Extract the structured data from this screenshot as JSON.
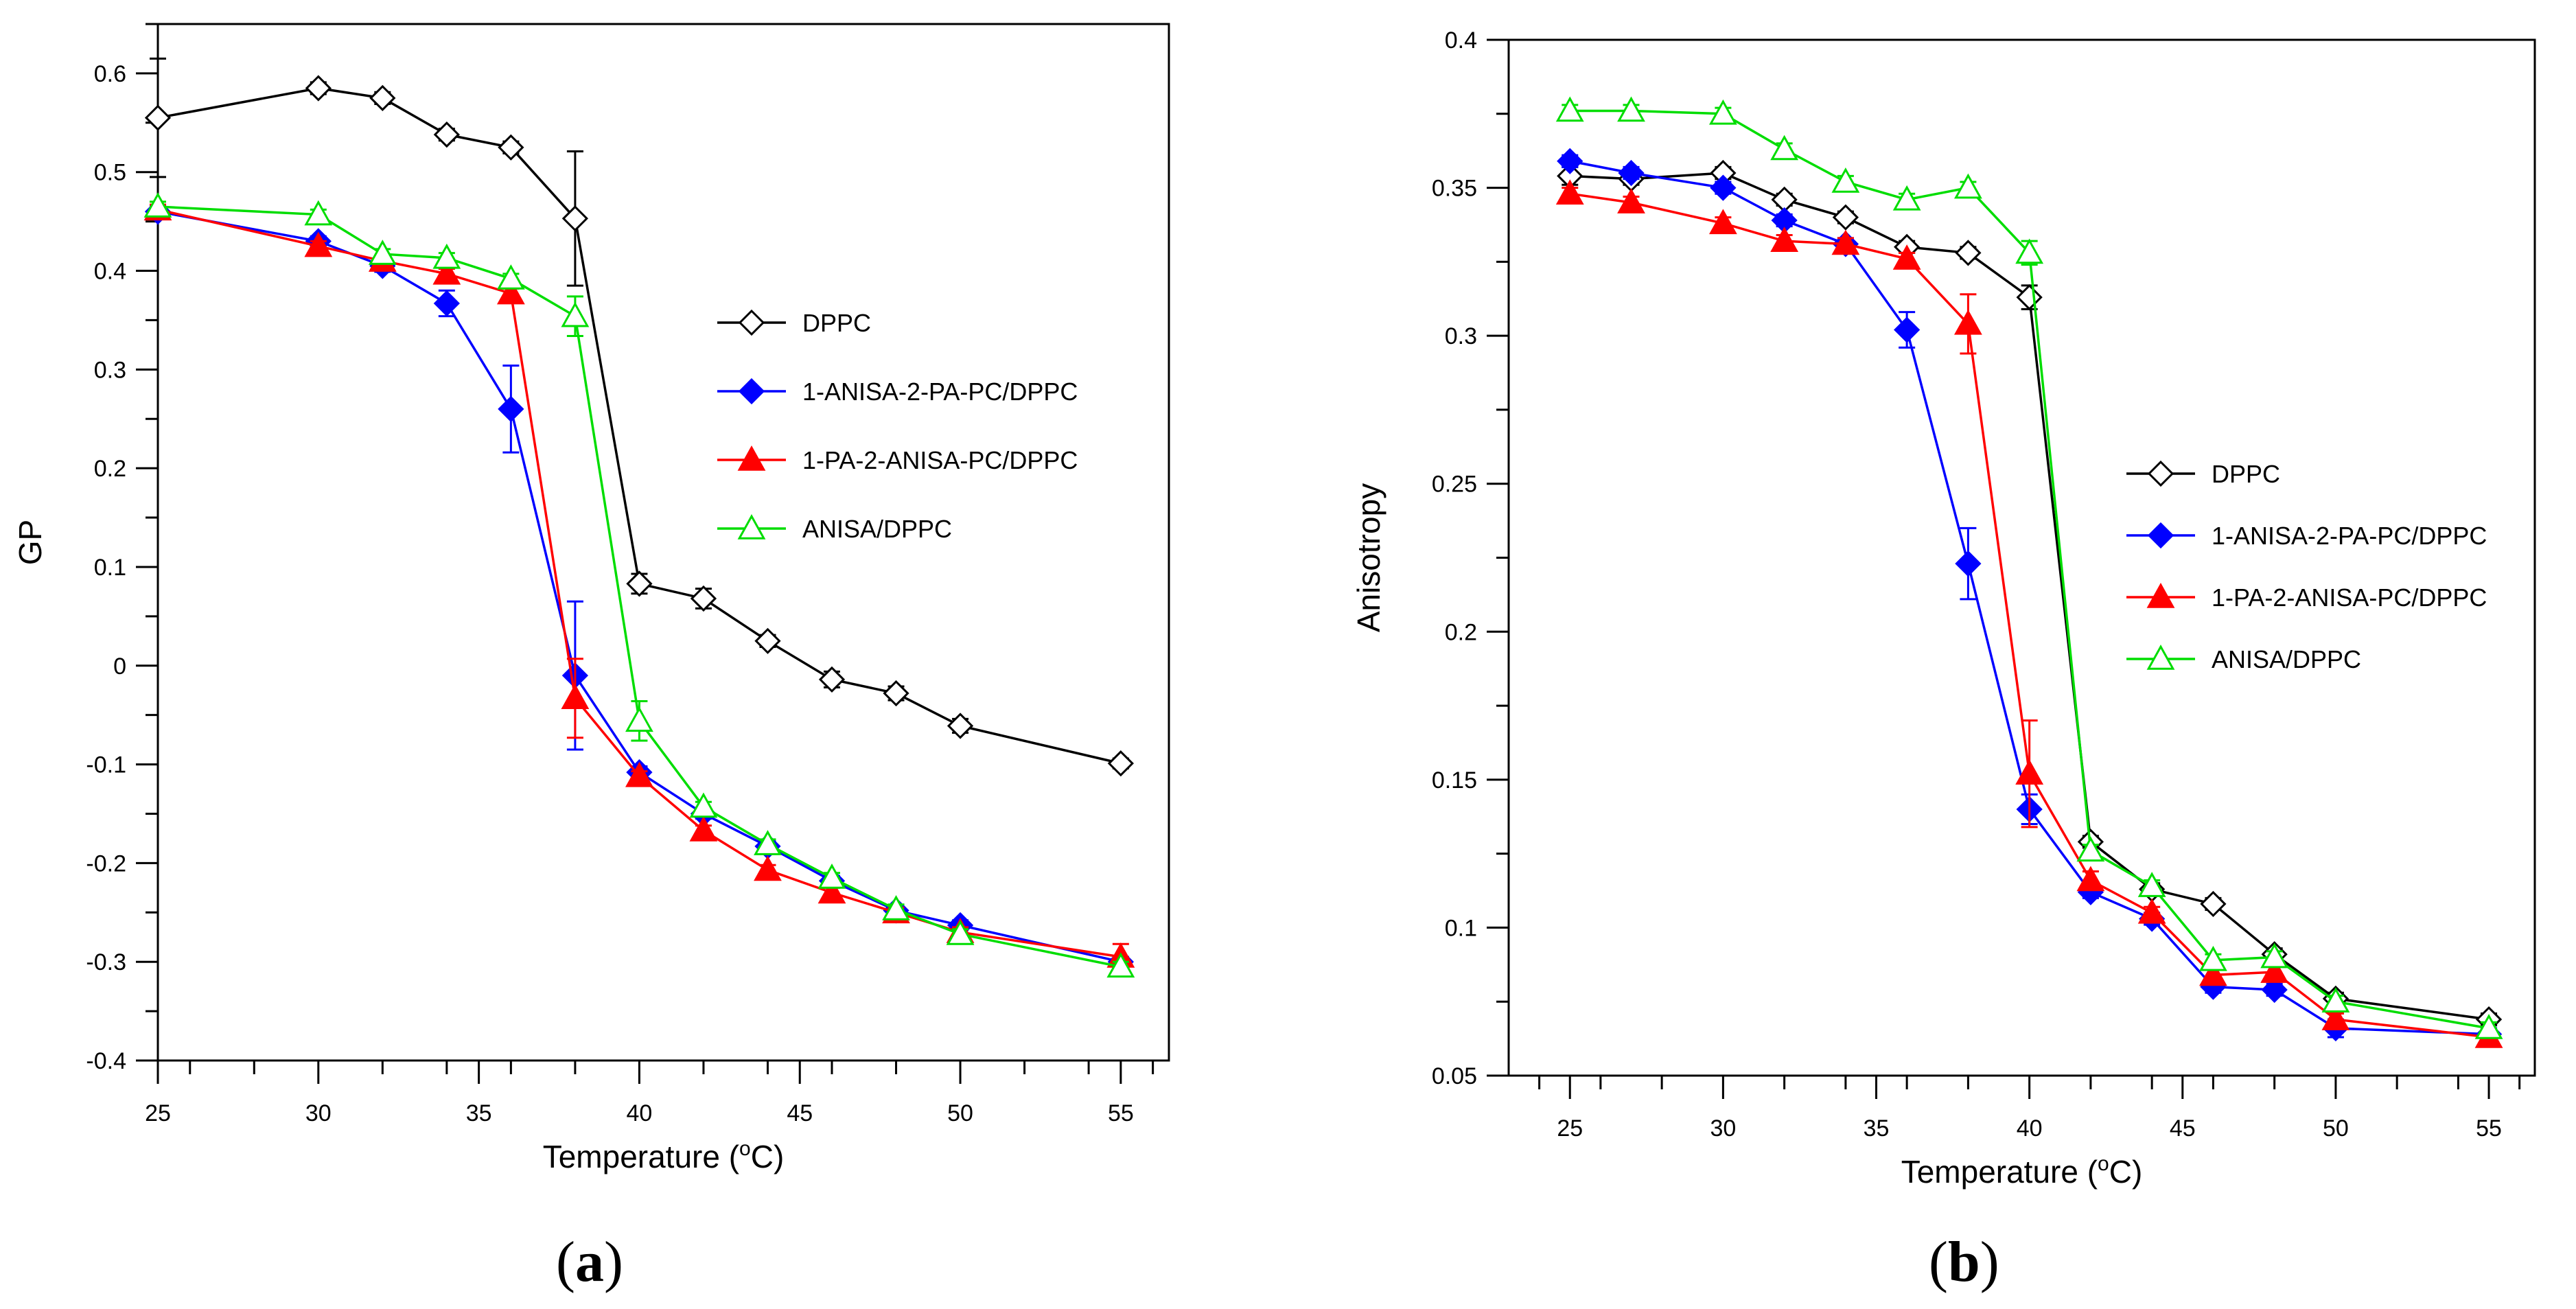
{
  "figure": {
    "panels": [
      {
        "label_open": "(",
        "label_letter": "a",
        "label_close": ")"
      },
      {
        "label_open": "(",
        "label_letter": "b",
        "label_close": ")"
      }
    ]
  },
  "chart_data": [
    {
      "type": "line",
      "xlabel": "Temperature (oC)",
      "xlabel_prefix": "Temperature (",
      "xlabel_sup": "o",
      "xlabel_suffix": "C)",
      "ylabel": "GP",
      "xlim": [
        25,
        56.5
      ],
      "ylim": [
        -0.4,
        0.65
      ],
      "xticks": [
        25,
        30,
        35,
        40,
        45,
        50,
        55
      ],
      "yticks": [
        -0.4,
        -0.3,
        -0.2,
        -0.1,
        0,
        0.1,
        0.2,
        0.3,
        0.4,
        0.5,
        0.6
      ],
      "ytick_labels": [
        "-0.4",
        "-0.3",
        "-0.2",
        "-0.1",
        "0",
        "0.1",
        "0.2",
        "0.3",
        "0.4",
        "0.5",
        "0.6"
      ],
      "grid": false,
      "legend_position": "right",
      "series": [
        {
          "name": "DPPC",
          "color": "#000000",
          "marker": "diamond-open",
          "x": [
            25,
            30,
            32,
            34,
            36,
            38,
            40,
            42,
            44,
            46,
            48,
            50,
            55
          ],
          "y": [
            0.555,
            0.585,
            0.575,
            0.538,
            0.525,
            0.453,
            0.083,
            0.068,
            0.025,
            -0.014,
            -0.028,
            -0.061,
            -0.099
          ],
          "err": [
            0.06,
            0.006,
            0.006,
            0.006,
            0.006,
            0.068,
            0.01,
            0.01,
            0.006,
            0.008,
            0.007,
            0.007,
            0.005
          ]
        },
        {
          "name": "1-ANISA-2-PA-PC/DPPC",
          "color": "#0000ff",
          "marker": "diamond-filled",
          "x": [
            25,
            30,
            32,
            34,
            36,
            38,
            40,
            42,
            44,
            46,
            48,
            50,
            55
          ],
          "y": [
            0.46,
            0.43,
            0.405,
            0.367,
            0.26,
            -0.01,
            -0.108,
            -0.15,
            -0.183,
            -0.218,
            -0.248,
            -0.263,
            -0.3
          ],
          "err": [
            0.005,
            0.005,
            0.006,
            0.013,
            0.044,
            0.075,
            0.006,
            0.005,
            0.005,
            0.005,
            0.005,
            0.005,
            0.005
          ]
        },
        {
          "name": "1-PA-2-ANISA-PC/DPPC",
          "color": "#ff0000",
          "marker": "triangle-filled",
          "x": [
            25,
            30,
            32,
            34,
            36,
            38,
            40,
            42,
            44,
            46,
            48,
            50,
            55
          ],
          "y": [
            0.462,
            0.425,
            0.41,
            0.397,
            0.377,
            -0.033,
            -0.112,
            -0.167,
            -0.207,
            -0.23,
            -0.25,
            -0.27,
            -0.295
          ],
          "err": [
            0.005,
            0.005,
            0.005,
            0.005,
            0.005,
            0.04,
            0.005,
            0.005,
            0.005,
            0.005,
            0.005,
            0.005,
            0.013
          ]
        },
        {
          "name": "ANISA/DPPC",
          "color": "#00dd00",
          "marker": "triangle-open",
          "x": [
            25,
            30,
            32,
            34,
            36,
            38,
            40,
            42,
            44,
            46,
            48,
            50,
            55
          ],
          "y": [
            0.465,
            0.457,
            0.417,
            0.413,
            0.392,
            0.354,
            -0.056,
            -0.143,
            -0.181,
            -0.215,
            -0.247,
            -0.272,
            -0.305
          ],
          "err": [
            0.005,
            0.005,
            0.005,
            0.005,
            0.005,
            0.02,
            0.02,
            0.005,
            0.005,
            0.005,
            0.005,
            0.005,
            0.005
          ]
        }
      ]
    },
    {
      "type": "line",
      "xlabel": "Temperature (oC)",
      "xlabel_prefix": "Temperature (",
      "xlabel_sup": "o",
      "xlabel_suffix": "C)",
      "ylabel": "Anisotropy",
      "xlim": [
        23,
        56.5
      ],
      "ylim": [
        0.05,
        0.4
      ],
      "xticks": [
        25,
        30,
        35,
        40,
        45,
        50,
        55
      ],
      "yticks": [
        0.05,
        0.1,
        0.15,
        0.2,
        0.25,
        0.3,
        0.35,
        0.4
      ],
      "ytick_labels": [
        "0.05",
        "0.1",
        "0.15",
        "0.2",
        "0.25",
        "0.3",
        "0.35",
        "0.4"
      ],
      "grid": false,
      "legend_position": "right",
      "series": [
        {
          "name": "DPPC",
          "color": "#000000",
          "marker": "diamond-open",
          "x": [
            25,
            27,
            30,
            32,
            34,
            36,
            38,
            40,
            42,
            44,
            46,
            48,
            50,
            55
          ],
          "y": [
            0.354,
            0.353,
            0.355,
            0.346,
            0.34,
            0.33,
            0.328,
            0.313,
            0.129,
            0.113,
            0.108,
            0.091,
            0.076,
            0.069
          ],
          "err": [
            0.003,
            0.002,
            0.002,
            0.002,
            0.002,
            0.002,
            0.002,
            0.004,
            0.002,
            0.002,
            0.002,
            0.002,
            0.002,
            0.002
          ]
        },
        {
          "name": "1-ANISA-2-PA-PC/DPPC",
          "color": "#0000ff",
          "marker": "diamond-filled",
          "x": [
            25,
            27,
            30,
            32,
            34,
            36,
            38,
            40,
            42,
            44,
            46,
            48,
            50,
            55
          ],
          "y": [
            0.359,
            0.355,
            0.35,
            0.339,
            0.331,
            0.302,
            0.223,
            0.14,
            0.112,
            0.103,
            0.08,
            0.079,
            0.066,
            0.064
          ],
          "err": [
            0.002,
            0.002,
            0.002,
            0.002,
            0.002,
            0.006,
            0.012,
            0.005,
            0.002,
            0.002,
            0.002,
            0.002,
            0.003,
            0.002
          ]
        },
        {
          "name": "1-PA-2-ANISA-PC/DPPC",
          "color": "#ff0000",
          "marker": "triangle-filled",
          "x": [
            25,
            27,
            30,
            32,
            34,
            36,
            38,
            40,
            42,
            44,
            46,
            48,
            50,
            55
          ],
          "y": [
            0.348,
            0.345,
            0.338,
            0.332,
            0.331,
            0.326,
            0.304,
            0.152,
            0.116,
            0.105,
            0.084,
            0.085,
            0.069,
            0.063
          ],
          "err": [
            0.002,
            0.002,
            0.002,
            0.002,
            0.002,
            0.002,
            0.01,
            0.018,
            0.003,
            0.002,
            0.002,
            0.002,
            0.002,
            0.002
          ]
        },
        {
          "name": "ANISA/DPPC",
          "color": "#00dd00",
          "marker": "triangle-open",
          "x": [
            25,
            27,
            30,
            32,
            34,
            36,
            38,
            40,
            42,
            44,
            46,
            48,
            50,
            55
          ],
          "y": [
            0.376,
            0.376,
            0.375,
            0.363,
            0.352,
            0.346,
            0.35,
            0.328,
            0.126,
            0.114,
            0.089,
            0.09,
            0.075,
            0.066
          ],
          "err": [
            0.002,
            0.002,
            0.002,
            0.002,
            0.002,
            0.002,
            0.002,
            0.004,
            0.002,
            0.002,
            0.002,
            0.002,
            0.002,
            0.002
          ]
        }
      ]
    }
  ]
}
